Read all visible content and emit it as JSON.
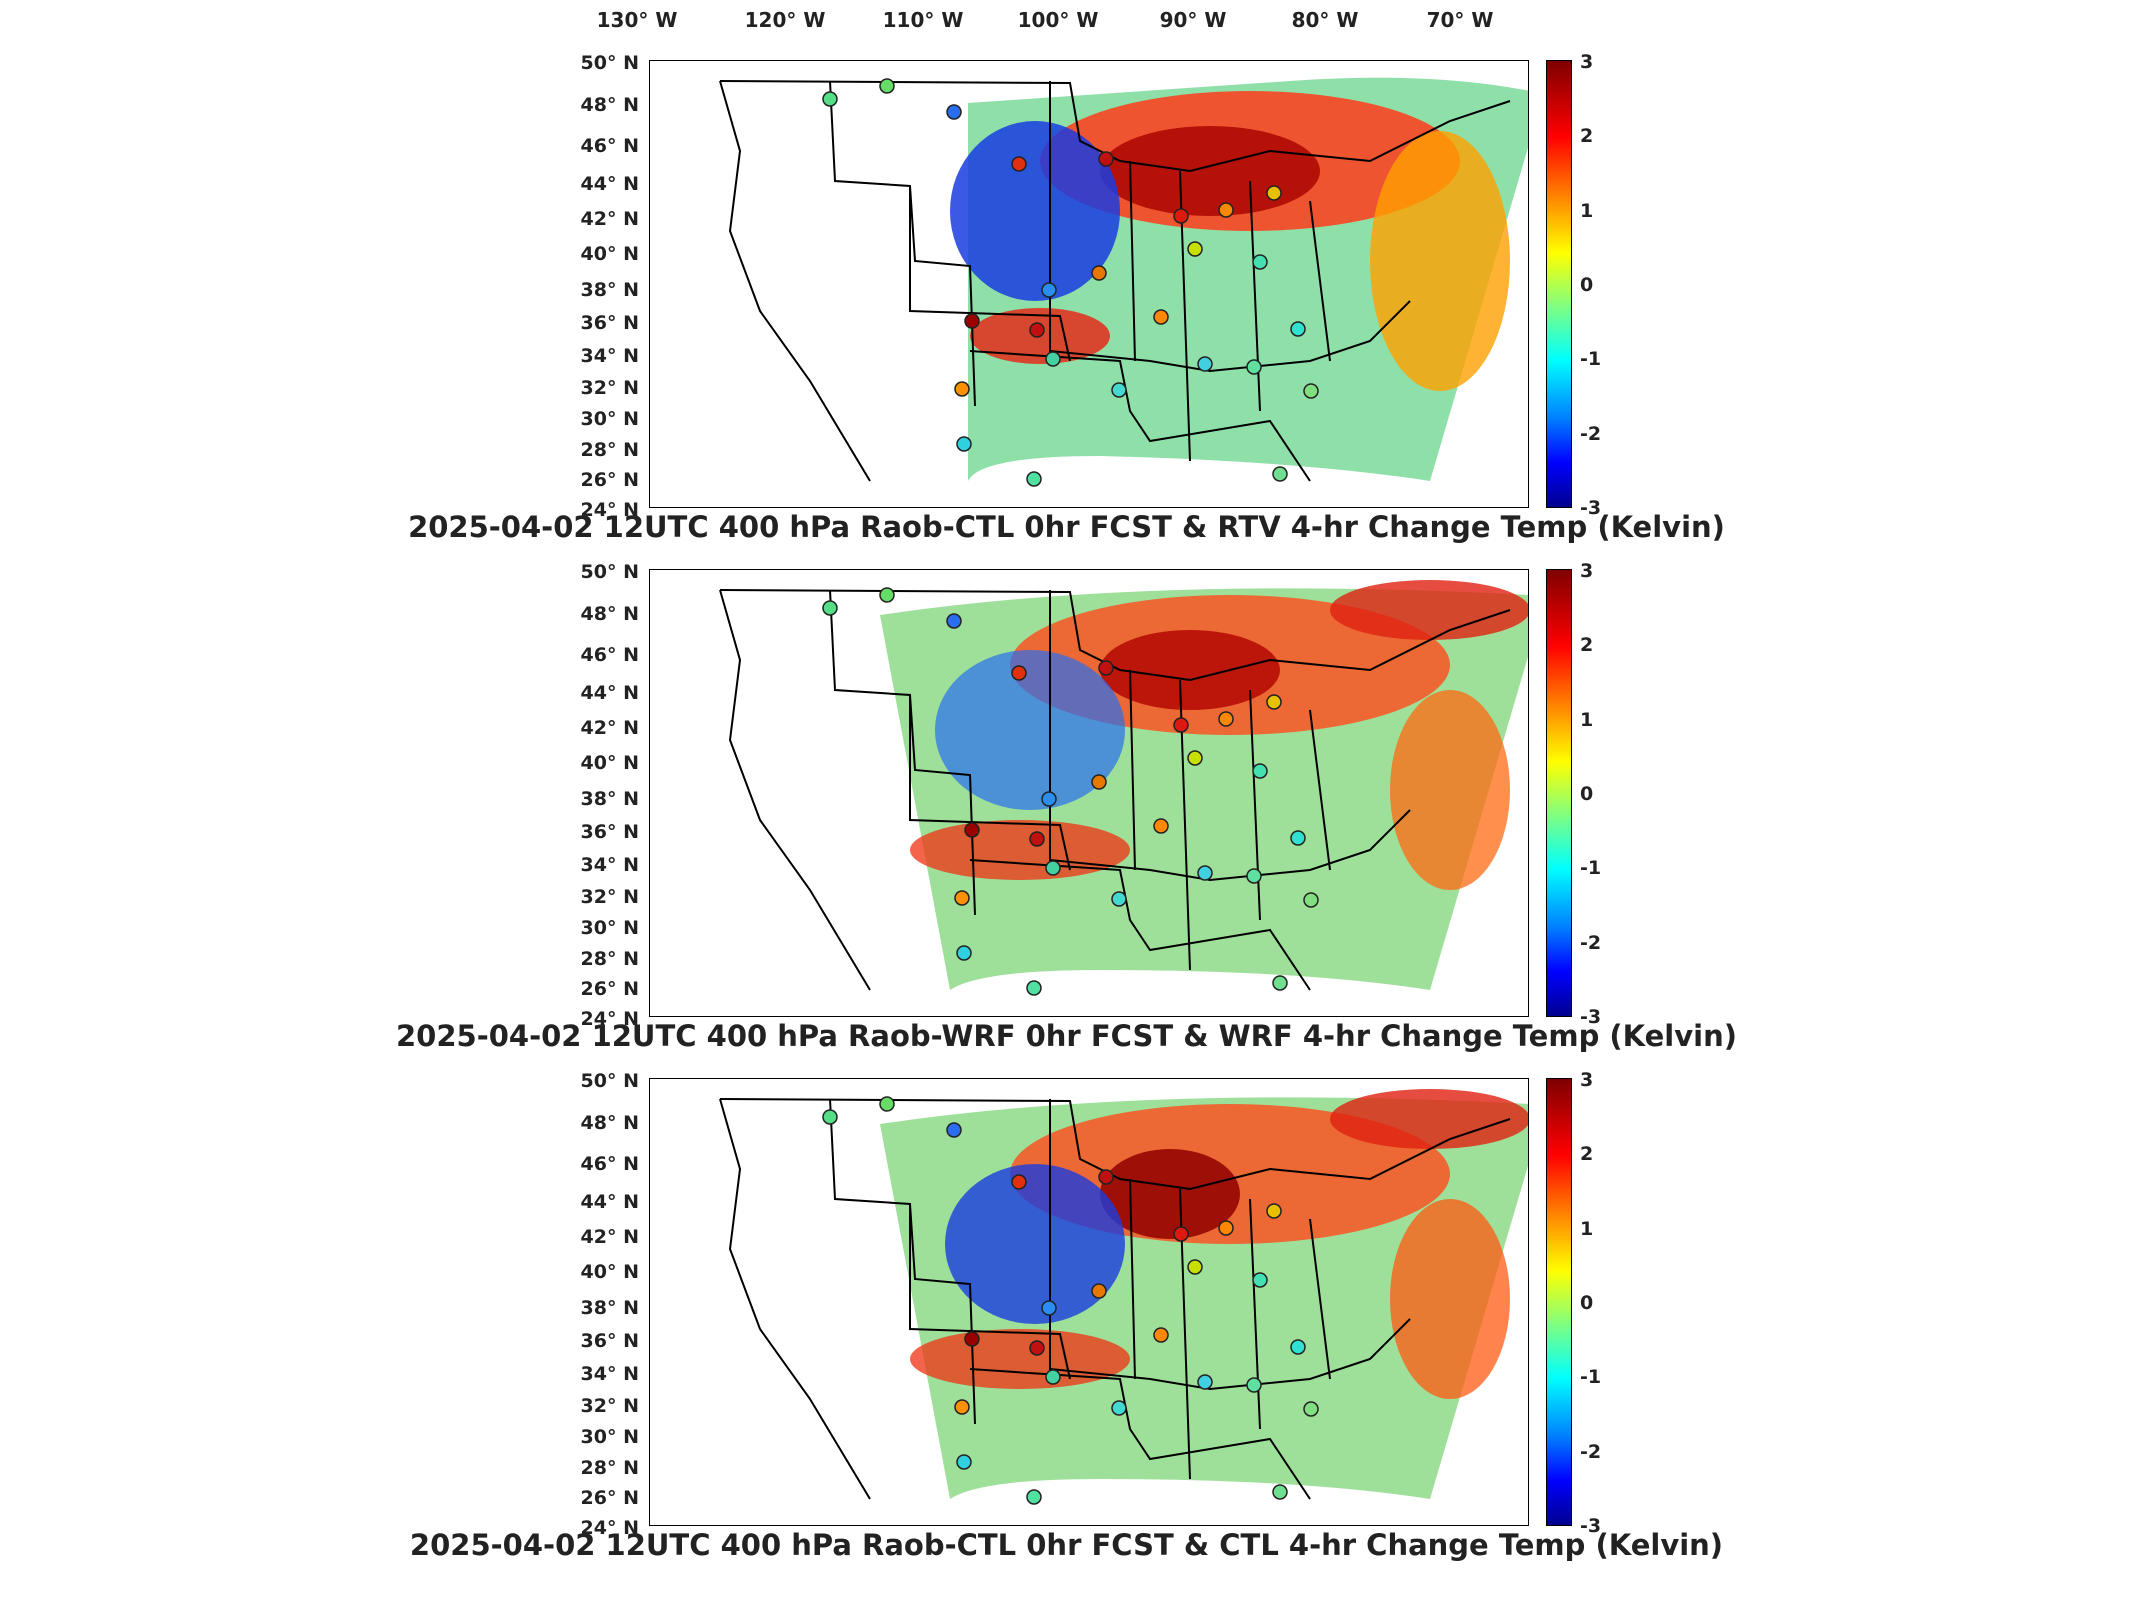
{
  "lon_labels": [
    "130° W",
    "120° W",
    "110° W",
    "100° W",
    "90° W",
    "80° W",
    "70° W"
  ],
  "lat_labels": [
    "50° N",
    "48° N",
    "46° N",
    "44° N",
    "42° N",
    "40° N",
    "38° N",
    "36° N",
    "34° N",
    "32° N",
    "30° N",
    "28° N",
    "26° N",
    "24° N"
  ],
  "colorbar_ticks": [
    "3",
    "2",
    "1",
    "0",
    "-1",
    "-2",
    "-3"
  ],
  "colormap": [
    "#7f0000",
    "#ff0000",
    "#ff8000",
    "#ffff00",
    "#80ff80",
    "#00ffff",
    "#0080ff",
    "#0000ff",
    "#00008f"
  ],
  "panels": [
    {
      "title": "2025-04-02 12UTC 400 hPa Raob-CTL 0hr FCST & RTV 4-hr Change Temp (Kelvin)"
    },
    {
      "title": "2025-04-02 12UTC 400 hPa Raob-WRF 0hr FCST & WRF 4-hr Change Temp (Kelvin)"
    },
    {
      "title": "2025-04-02 12UTC 400 hPa Raob-CTL 0hr FCST & CTL 4-hr Change Temp (Kelvin)"
    }
  ]
}
